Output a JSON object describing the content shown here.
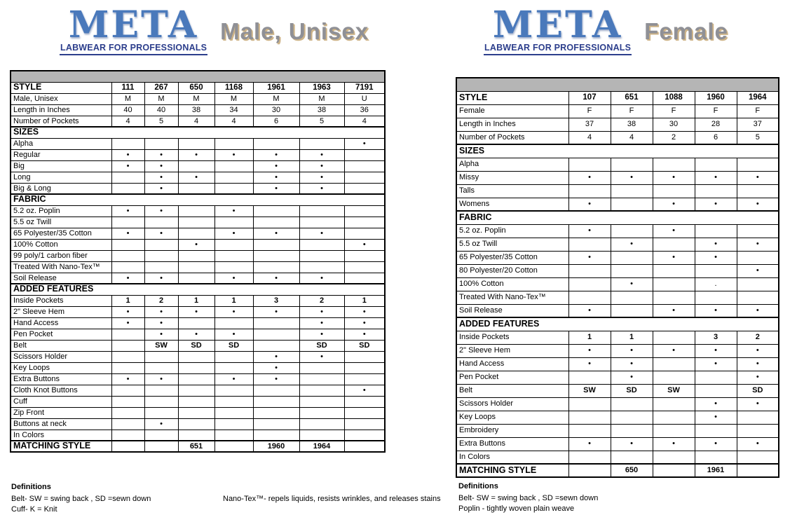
{
  "panels": [
    {
      "logo_brand": "META",
      "logo_tagline": "LABWEAR FOR PROFESSIONALS",
      "title": "Male, Unisex",
      "table": {
        "style_label": "STYLE",
        "columns": [
          "111",
          "267",
          "650",
          "1168",
          "1961",
          "1963",
          "7191"
        ],
        "rows": [
          {
            "label": "Male, Unisex",
            "values": [
              "M",
              "M",
              "M",
              "M",
              "M",
              "M",
              "U"
            ]
          },
          {
            "label": "Length in Inches",
            "values": [
              "40",
              "40",
              "38",
              "34",
              "30",
              "38",
              "36"
            ]
          },
          {
            "label": "Number of Pockets",
            "values": [
              "4",
              "5",
              "4",
              "4",
              "6",
              "5",
              "4"
            ]
          },
          {
            "label": "SIZES",
            "section": true
          },
          {
            "label": "Alpha",
            "values": [
              "",
              "",
              "",
              "",
              "",
              "",
              "•"
            ]
          },
          {
            "label": "Regular",
            "values": [
              "•",
              "•",
              "•",
              "•",
              "•",
              "•",
              ""
            ]
          },
          {
            "label": "Big",
            "values": [
              "•",
              "•",
              "",
              "",
              "•",
              "•",
              ""
            ]
          },
          {
            "label": "Long",
            "values": [
              "",
              "•",
              "•",
              "",
              "•",
              "•",
              ""
            ]
          },
          {
            "label": "Big & Long",
            "values": [
              "",
              "•",
              "",
              "",
              "•",
              "•",
              ""
            ]
          },
          {
            "label": "FABRIC",
            "section": true
          },
          {
            "label": "5.2 oz. Poplin",
            "values": [
              "•",
              "•",
              "",
              "•",
              "",
              "",
              ""
            ]
          },
          {
            "label": "5.5 oz Twill",
            "values": [
              "",
              "",
              "",
              "",
              "",
              "",
              ""
            ]
          },
          {
            "label": "65 Polyester/35 Cotton",
            "values": [
              "•",
              "•",
              "",
              "•",
              "•",
              "•",
              ""
            ]
          },
          {
            "label": "100% Cotton",
            "values": [
              "",
              "",
              "•",
              "",
              "",
              "",
              "•"
            ]
          },
          {
            "label": "99 poly/1 carbon fiber",
            "values": [
              "",
              "",
              "",
              "",
              "",
              "",
              ""
            ]
          },
          {
            "label": "Treated With Nano-Tex™",
            "values": [
              "",
              "",
              "",
              "",
              "",
              "",
              ""
            ]
          },
          {
            "label": "Soil Release",
            "values": [
              "•",
              "•",
              "",
              "•",
              "•",
              "•",
              ""
            ]
          },
          {
            "label": "ADDED FEATURES",
            "section": true
          },
          {
            "label": "Inside Pockets",
            "bold": true,
            "values": [
              "1",
              "2",
              "1",
              "1",
              "3",
              "2",
              "1"
            ]
          },
          {
            "label": "2\" Sleeve Hem",
            "values": [
              "•",
              "•",
              "•",
              "•",
              "•",
              "•",
              "•"
            ]
          },
          {
            "label": "Hand Access",
            "values": [
              "•",
              "•",
              "",
              "",
              "",
              "•",
              "•"
            ]
          },
          {
            "label": "Pen Pocket",
            "values": [
              "",
              "•",
              "•",
              "•",
              "",
              "•",
              "•"
            ]
          },
          {
            "label": "Belt",
            "bold": true,
            "values": [
              "",
              "SW",
              "SD",
              "SD",
              "",
              "SD",
              "SD"
            ]
          },
          {
            "label": "Scissors Holder",
            "values": [
              "",
              "",
              "",
              "",
              "•",
              "•",
              ""
            ]
          },
          {
            "label": "Key Loops",
            "values": [
              "",
              "",
              "",
              "",
              "•",
              "",
              ""
            ]
          },
          {
            "label": "Extra Buttons",
            "values": [
              "•",
              "•",
              "",
              "•",
              "•",
              "",
              ""
            ]
          },
          {
            "label": "Cloth Knot Buttons",
            "values": [
              "",
              "",
              "",
              "",
              "",
              "",
              "•"
            ]
          },
          {
            "label": "Cuff",
            "values": [
              "",
              "",
              "",
              "",
              "",
              "",
              ""
            ]
          },
          {
            "label": "Zip Front",
            "values": [
              "",
              "",
              "",
              "",
              "",
              "",
              ""
            ]
          },
          {
            "label": "Buttons at neck",
            "values": [
              "",
              "•",
              "",
              "",
              "",
              "",
              ""
            ]
          },
          {
            "label": "In Colors",
            "values": [
              "",
              "",
              "",
              "",
              "",
              "",
              ""
            ]
          },
          {
            "label": "MATCHING STYLE",
            "matching": true,
            "values": [
              "",
              "",
              "651",
              "",
              "1960",
              "1964",
              ""
            ]
          }
        ]
      },
      "definitions": {
        "heading": "Definitions",
        "lines": [
          "Belt- SW = swing back , SD =sewn down",
          "Cuff- K = Knit"
        ],
        "note": "Nano-Tex™- repels liquids, resists wrinkles, and releases stains"
      }
    },
    {
      "logo_brand": "META",
      "logo_tagline": "LABWEAR FOR PROFESSIONALS",
      "title": "Female",
      "table": {
        "style_label": "STYLE",
        "columns": [
          "107",
          "651",
          "1088",
          "1960",
          "1964"
        ],
        "rows": [
          {
            "label": "Female",
            "values": [
              "F",
              "F",
              "F",
              "F",
              "F"
            ]
          },
          {
            "label": "Length in Inches",
            "values": [
              "37",
              "38",
              "30",
              "28",
              "37"
            ]
          },
          {
            "label": "Number of Pockets",
            "values": [
              "4",
              "4",
              "2",
              "6",
              "5"
            ]
          },
          {
            "label": "SIZES",
            "section": true
          },
          {
            "label": "Alpha",
            "values": [
              "",
              "",
              "",
              "",
              ""
            ]
          },
          {
            "label": "Missy",
            "values": [
              "•",
              "•",
              "•",
              "•",
              "•"
            ]
          },
          {
            "label": "Talls",
            "values": [
              "",
              "",
              "",
              "",
              ""
            ]
          },
          {
            "label": "Womens",
            "values": [
              "•",
              "",
              "•",
              "•",
              "•"
            ]
          },
          {
            "label": "FABRIC",
            "section": true
          },
          {
            "label": "5.2 oz. Poplin",
            "values": [
              "•",
              "",
              "•",
              "",
              ""
            ]
          },
          {
            "label": "5.5 oz Twill",
            "values": [
              "",
              "•",
              "",
              "•",
              "•"
            ]
          },
          {
            "label": "65 Polyester/35 Cotton",
            "values": [
              "•",
              "",
              "•",
              "•",
              ""
            ]
          },
          {
            "label": "80 Polyester/20 Cotton",
            "values": [
              "",
              "",
              "",
              "",
              "•"
            ]
          },
          {
            "label": "100% Cotton",
            "values": [
              "",
              "•",
              "",
              ".",
              ""
            ]
          },
          {
            "label": "Treated With Nano-Tex™",
            "values": [
              "",
              "",
              "",
              "",
              ""
            ]
          },
          {
            "label": "Soil Release",
            "values": [
              "•",
              "",
              "•",
              "•",
              "•"
            ]
          },
          {
            "label": "ADDED FEATURES",
            "section": true
          },
          {
            "label": "Inside Pockets",
            "bold": true,
            "values": [
              "1",
              "1",
              "",
              "3",
              "2"
            ]
          },
          {
            "label": "2\" Sleeve Hem",
            "values": [
              "•",
              "•",
              "•",
              "•",
              "•"
            ]
          },
          {
            "label": "Hand Access",
            "values": [
              "•",
              "•",
              "",
              "•",
              "•"
            ]
          },
          {
            "label": "Pen Pocket",
            "values": [
              "",
              "•",
              "",
              "",
              "•"
            ]
          },
          {
            "label": "Belt",
            "bold": true,
            "values": [
              "SW",
              "SD",
              "SW",
              "",
              "SD"
            ]
          },
          {
            "label": "Scissors Holder",
            "values": [
              "",
              "",
              "",
              "•",
              "•"
            ]
          },
          {
            "label": "Key Loops",
            "values": [
              "",
              "",
              "",
              "•",
              ""
            ]
          },
          {
            "label": "Embroidery",
            "values": [
              "",
              "",
              "",
              "",
              ""
            ]
          },
          {
            "label": "Extra Buttons",
            "values": [
              "•",
              "•",
              "•",
              "•",
              "•"
            ]
          },
          {
            "label": "In Colors",
            "values": [
              "",
              "",
              "",
              "",
              ""
            ]
          },
          {
            "label": "MATCHING STYLE",
            "matching": true,
            "values": [
              "",
              "650",
              "",
              "1961",
              ""
            ]
          }
        ]
      },
      "definitions": {
        "heading": "Definitions",
        "lines": [
          "Belt- SW = swing back , SD =sewn down",
          "Poplin - tightly woven plain weave"
        ]
      }
    }
  ]
}
